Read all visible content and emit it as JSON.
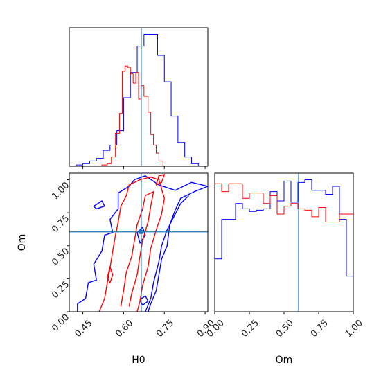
{
  "chart_data": {
    "type": "corner",
    "params": [
      "H0",
      "Om"
    ],
    "truth": {
      "H0": 0.665,
      "Om": 0.605
    },
    "colors": {
      "blue": "#0000ff",
      "red": "#ff0000",
      "truth": "#1f77b4"
    },
    "h0_hist": {
      "type": "histogram",
      "xlabel": "",
      "xlim": [
        0.4,
        0.91
      ],
      "ticks": [
        0.45,
        0.6,
        0.75,
        0.9
      ],
      "tick_labels": [
        "",
        "",
        "",
        ""
      ],
      "series": [
        {
          "color": "#0000ff",
          "edges": [
            0.4,
            0.425,
            0.45,
            0.475,
            0.5,
            0.525,
            0.55,
            0.575,
            0.6,
            0.625,
            0.65,
            0.675,
            0.7,
            0.725,
            0.75,
            0.775,
            0.8,
            0.825,
            0.85,
            0.875,
            0.91
          ],
          "values": [
            0.0,
            0.01,
            0.02,
            0.04,
            0.06,
            0.12,
            0.16,
            0.27,
            0.52,
            0.71,
            0.91,
            1.0,
            1.0,
            0.84,
            0.64,
            0.38,
            0.18,
            0.07,
            0.02,
            0.0
          ]
        },
        {
          "color": "#ff0000",
          "edges": [
            0.5,
            0.52,
            0.54,
            0.555,
            0.57,
            0.585,
            0.595,
            0.605,
            0.615,
            0.625,
            0.635,
            0.645,
            0.655,
            0.665,
            0.675,
            0.69,
            0.7,
            0.71,
            0.72,
            0.73,
            0.745,
            0.76
          ],
          "values": [
            0.0,
            0.01,
            0.02,
            0.07,
            0.25,
            0.4,
            0.72,
            0.76,
            0.75,
            0.7,
            0.63,
            0.71,
            0.51,
            0.61,
            0.53,
            0.41,
            0.24,
            0.16,
            0.1,
            0.04,
            0.0
          ]
        }
      ]
    },
    "joint": {
      "type": "contour",
      "xlabel": "H0",
      "ylabel": "Om",
      "xlim": [
        0.4,
        0.91
      ],
      "ylim": [
        0.0,
        1.05
      ],
      "xticks": [
        0.45,
        0.6,
        0.75,
        0.9
      ],
      "xtick_labels": [
        "0.45",
        "0.60",
        "0.75",
        "0.90"
      ],
      "yticks": [
        0.0,
        0.25,
        0.5,
        0.75,
        1.0
      ],
      "ytick_labels": [
        "0.00",
        "0.25",
        "0.50",
        "0.75",
        "1.00"
      ],
      "contours": [
        {
          "color": "#0000ff",
          "level": "outer",
          "points": [
            [
              0.43,
              0.0
            ],
            [
              0.43,
              0.06
            ],
            [
              0.46,
              0.1
            ],
            [
              0.47,
              0.22
            ],
            [
              0.5,
              0.24
            ],
            [
              0.49,
              0.36
            ],
            [
              0.52,
              0.46
            ],
            [
              0.53,
              0.58
            ],
            [
              0.56,
              0.6
            ],
            [
              0.55,
              0.7
            ],
            [
              0.58,
              0.78
            ],
            [
              0.58,
              0.9
            ],
            [
              0.62,
              0.95
            ],
            [
              0.64,
              1.0
            ],
            [
              0.68,
              1.03
            ],
            [
              0.73,
              0.96
            ],
            [
              0.79,
              0.92
            ],
            [
              0.85,
              0.98
            ],
            [
              0.91,
              0.95
            ],
            [
              0.86,
              0.91
            ],
            [
              0.81,
              0.86
            ],
            [
              0.79,
              0.77
            ],
            [
              0.77,
              0.66
            ],
            [
              0.76,
              0.5
            ],
            [
              0.74,
              0.4
            ],
            [
              0.73,
              0.28
            ],
            [
              0.72,
              0.16
            ],
            [
              0.7,
              0.06
            ],
            [
              0.69,
              0.0
            ]
          ]
        },
        {
          "color": "#0000ff",
          "level": "blob",
          "points": [
            [
              0.5,
              0.78
            ],
            [
              0.53,
              0.8
            ],
            [
              0.52,
              0.84
            ],
            [
              0.49,
              0.8
            ]
          ]
        },
        {
          "color": "#0000ff",
          "level": "inner",
          "points": [
            [
              0.68,
              0.0
            ],
            [
              0.7,
              0.1
            ],
            [
              0.71,
              0.22
            ],
            [
              0.73,
              0.38
            ],
            [
              0.74,
              0.5
            ],
            [
              0.76,
              0.62
            ],
            [
              0.79,
              0.74
            ],
            [
              0.81,
              0.82
            ],
            [
              0.84,
              0.88
            ]
          ]
        },
        {
          "color": "#0000ff",
          "level": "blob",
          "points": [
            [
              0.66,
              0.52
            ],
            [
              0.68,
              0.58
            ],
            [
              0.67,
              0.64
            ],
            [
              0.65,
              0.6
            ]
          ]
        },
        {
          "color": "#0000ff",
          "level": "blob",
          "points": [
            [
              0.67,
              0.05
            ],
            [
              0.69,
              0.08
            ],
            [
              0.68,
              0.12
            ],
            [
              0.66,
              0.09
            ]
          ]
        },
        {
          "color": "#ff0000",
          "level": "outer",
          "points": [
            [
              0.51,
              0.0
            ],
            [
              0.53,
              0.1
            ],
            [
              0.54,
              0.22
            ],
            [
              0.55,
              0.33
            ],
            [
              0.56,
              0.46
            ],
            [
              0.57,
              0.58
            ],
            [
              0.58,
              0.68
            ],
            [
              0.59,
              0.8
            ],
            [
              0.61,
              0.88
            ],
            [
              0.62,
              0.96
            ],
            [
              0.66,
              1.0
            ],
            [
              0.7,
              1.02
            ],
            [
              0.73,
              1.0
            ],
            [
              0.74,
              0.93
            ],
            [
              0.75,
              0.86
            ],
            [
              0.74,
              0.74
            ],
            [
              0.72,
              0.62
            ],
            [
              0.7,
              0.48
            ],
            [
              0.69,
              0.34
            ],
            [
              0.67,
              0.2
            ],
            [
              0.66,
              0.08
            ],
            [
              0.65,
              0.0
            ]
          ]
        },
        {
          "color": "#ff0000",
          "level": "inner",
          "points": [
            [
              0.59,
              0.04
            ],
            [
              0.6,
              0.16
            ],
            [
              0.61,
              0.3
            ],
            [
              0.63,
              0.42
            ],
            [
              0.64,
              0.54
            ],
            [
              0.65,
              0.66
            ],
            [
              0.67,
              0.78
            ],
            [
              0.68,
              0.88
            ],
            [
              0.71,
              0.91
            ],
            [
              0.7,
              0.8
            ],
            [
              0.69,
              0.68
            ],
            [
              0.67,
              0.54
            ],
            [
              0.66,
              0.42
            ],
            [
              0.65,
              0.28
            ],
            [
              0.63,
              0.14
            ],
            [
              0.62,
              0.04
            ]
          ]
        },
        {
          "color": "#ff0000",
          "level": "blob",
          "points": [
            [
              0.54,
              0.26
            ],
            [
              0.55,
              0.22
            ],
            [
              0.56,
              0.28
            ],
            [
              0.55,
              0.34
            ]
          ]
        },
        {
          "color": "#ff0000",
          "level": "blob",
          "points": [
            [
              0.72,
              0.96
            ],
            [
              0.74,
              0.98
            ],
            [
              0.75,
              1.04
            ],
            [
              0.73,
              1.03
            ]
          ]
        }
      ]
    },
    "om_hist": {
      "type": "histogram",
      "xlabel": "Om",
      "xlim": [
        0.0,
        1.0
      ],
      "ticks": [
        0.0,
        0.25,
        0.5,
        0.75,
        1.0
      ],
      "tick_labels": [
        "0.00",
        "0.25",
        "0.50",
        "0.75",
        "1.00"
      ],
      "series": [
        {
          "color": "#0000ff",
          "edges": [
            0.0,
            0.05,
            0.1,
            0.15,
            0.2,
            0.25,
            0.3,
            0.35,
            0.4,
            0.45,
            0.5,
            0.55,
            0.6,
            0.65,
            0.7,
            0.75,
            0.8,
            0.85,
            0.9,
            0.95,
            1.0
          ],
          "values": [
            0.4,
            0.7,
            0.7,
            0.82,
            0.78,
            0.76,
            0.77,
            0.78,
            0.91,
            0.84,
            0.99,
            0.83,
            0.98,
            1.0,
            0.92,
            0.92,
            0.89,
            0.95,
            0.7,
            0.27
          ]
        },
        {
          "color": "#ff0000",
          "edges": [
            0.0,
            0.05,
            0.1,
            0.15,
            0.2,
            0.25,
            0.3,
            0.35,
            0.4,
            0.45,
            0.5,
            0.55,
            0.6,
            0.65,
            0.7,
            0.75,
            0.8,
            0.85,
            0.9,
            0.95,
            1.0
          ],
          "values": [
            0.97,
            0.91,
            0.97,
            0.97,
            0.86,
            0.9,
            0.9,
            0.82,
            0.88,
            0.74,
            0.8,
            0.82,
            0.78,
            0.77,
            0.72,
            0.79,
            0.68,
            0.68,
            0.74,
            0.74
          ]
        }
      ]
    }
  }
}
